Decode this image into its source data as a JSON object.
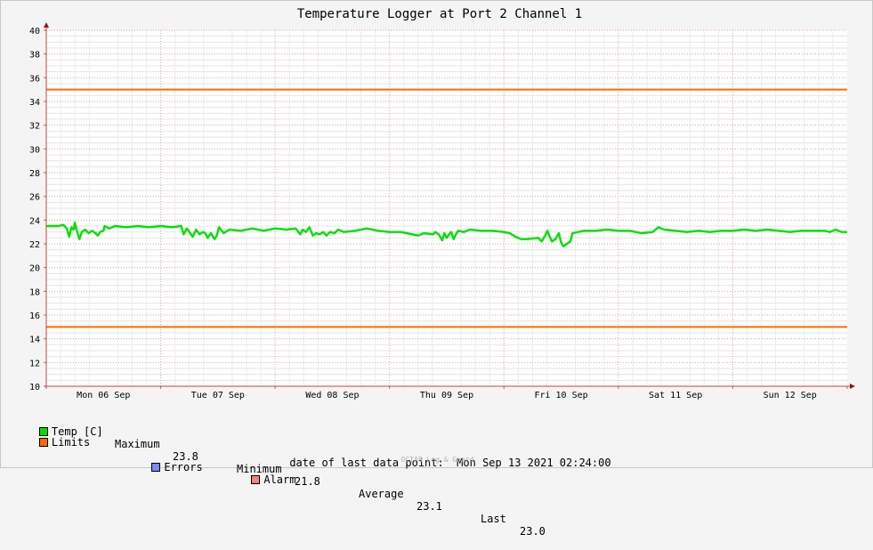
{
  "chart_data": {
    "type": "line",
    "title": "Temperature Logger at Port 2 Channel 1",
    "ylim": [
      10,
      40
    ],
    "y_ticks": [
      10,
      12,
      14,
      16,
      18,
      20,
      22,
      24,
      26,
      28,
      30,
      32,
      34,
      36,
      38,
      40
    ],
    "x_range_days": [
      0,
      7
    ],
    "x_ticks": [
      {
        "label": "Mon 06 Sep",
        "x": 0.5
      },
      {
        "label": "Tue 07 Sep",
        "x": 1.5
      },
      {
        "label": "Wed 08 Sep",
        "x": 2.5
      },
      {
        "label": "Thu 09 Sep",
        "x": 3.5
      },
      {
        "label": "Fri 10 Sep",
        "x": 4.5
      },
      {
        "label": "Sat 11 Sep",
        "x": 5.5
      },
      {
        "label": "Sun 12 Sep",
        "x": 6.5
      }
    ],
    "grid": true,
    "limits": {
      "upper": 35,
      "lower": 15,
      "color": "#ff6a00"
    },
    "series": [
      {
        "name": "Temp [C]",
        "color": "#00e000",
        "points": [
          [
            0.0,
            23.5
          ],
          [
            0.1,
            23.5
          ],
          [
            0.15,
            23.6
          ],
          [
            0.18,
            23.3
          ],
          [
            0.2,
            22.6
          ],
          [
            0.22,
            23.4
          ],
          [
            0.24,
            23.2
          ],
          [
            0.25,
            23.8
          ],
          [
            0.27,
            23.0
          ],
          [
            0.29,
            22.4
          ],
          [
            0.31,
            23.0
          ],
          [
            0.34,
            23.2
          ],
          [
            0.37,
            22.9
          ],
          [
            0.4,
            23.1
          ],
          [
            0.43,
            22.9
          ],
          [
            0.45,
            22.7
          ],
          [
            0.47,
            23.0
          ],
          [
            0.5,
            23.1
          ],
          [
            0.51,
            23.5
          ],
          [
            0.55,
            23.3
          ],
          [
            0.6,
            23.5
          ],
          [
            0.7,
            23.4
          ],
          [
            0.8,
            23.5
          ],
          [
            0.9,
            23.4
          ],
          [
            1.0,
            23.5
          ],
          [
            1.1,
            23.4
          ],
          [
            1.18,
            23.5
          ],
          [
            1.2,
            22.8
          ],
          [
            1.23,
            23.3
          ],
          [
            1.25,
            23.0
          ],
          [
            1.28,
            22.6
          ],
          [
            1.31,
            23.2
          ],
          [
            1.34,
            22.8
          ],
          [
            1.37,
            23.0
          ],
          [
            1.39,
            22.9
          ],
          [
            1.41,
            22.5
          ],
          [
            1.44,
            22.9
          ],
          [
            1.47,
            22.4
          ],
          [
            1.49,
            22.7
          ],
          [
            1.51,
            23.4
          ],
          [
            1.55,
            22.9
          ],
          [
            1.6,
            23.2
          ],
          [
            1.7,
            23.1
          ],
          [
            1.8,
            23.3
          ],
          [
            1.9,
            23.1
          ],
          [
            2.0,
            23.3
          ],
          [
            2.1,
            23.2
          ],
          [
            2.18,
            23.3
          ],
          [
            2.22,
            22.8
          ],
          [
            2.24,
            23.2
          ],
          [
            2.27,
            23.0
          ],
          [
            2.3,
            23.4
          ],
          [
            2.33,
            22.7
          ],
          [
            2.36,
            22.9
          ],
          [
            2.39,
            22.8
          ],
          [
            2.42,
            23.0
          ],
          [
            2.45,
            22.7
          ],
          [
            2.48,
            23.0
          ],
          [
            2.52,
            22.9
          ],
          [
            2.55,
            23.2
          ],
          [
            2.6,
            23.0
          ],
          [
            2.7,
            23.1
          ],
          [
            2.8,
            23.3
          ],
          [
            2.9,
            23.1
          ],
          [
            3.0,
            23.0
          ],
          [
            3.1,
            23.0
          ],
          [
            3.2,
            22.8
          ],
          [
            3.25,
            22.7
          ],
          [
            3.3,
            22.9
          ],
          [
            3.38,
            22.8
          ],
          [
            3.4,
            23.0
          ],
          [
            3.43,
            22.8
          ],
          [
            3.46,
            22.3
          ],
          [
            3.48,
            22.9
          ],
          [
            3.5,
            22.5
          ],
          [
            3.52,
            22.8
          ],
          [
            3.54,
            23.0
          ],
          [
            3.56,
            22.4
          ],
          [
            3.58,
            22.8
          ],
          [
            3.6,
            23.1
          ],
          [
            3.65,
            23.0
          ],
          [
            3.7,
            23.2
          ],
          [
            3.8,
            23.1
          ],
          [
            3.9,
            23.1
          ],
          [
            4.0,
            23.0
          ],
          [
            4.05,
            22.9
          ],
          [
            4.1,
            22.6
          ],
          [
            4.15,
            22.4
          ],
          [
            4.2,
            22.4
          ],
          [
            4.3,
            22.5
          ],
          [
            4.33,
            22.2
          ],
          [
            4.36,
            22.7
          ],
          [
            4.38,
            23.1
          ],
          [
            4.4,
            22.6
          ],
          [
            4.42,
            22.2
          ],
          [
            4.45,
            22.4
          ],
          [
            4.48,
            22.9
          ],
          [
            4.5,
            22.1
          ],
          [
            4.52,
            21.8
          ],
          [
            4.55,
            22.0
          ],
          [
            4.58,
            22.2
          ],
          [
            4.6,
            22.9
          ],
          [
            4.65,
            23.0
          ],
          [
            4.7,
            23.1
          ],
          [
            4.8,
            23.1
          ],
          [
            4.9,
            23.2
          ],
          [
            5.0,
            23.1
          ],
          [
            5.1,
            23.1
          ],
          [
            5.2,
            22.9
          ],
          [
            5.3,
            23.0
          ],
          [
            5.35,
            23.4
          ],
          [
            5.4,
            23.2
          ],
          [
            5.5,
            23.1
          ],
          [
            5.6,
            23.0
          ],
          [
            5.7,
            23.1
          ],
          [
            5.8,
            23.0
          ],
          [
            5.9,
            23.1
          ],
          [
            6.0,
            23.1
          ],
          [
            6.1,
            23.2
          ],
          [
            6.2,
            23.1
          ],
          [
            6.3,
            23.2
          ],
          [
            6.4,
            23.1
          ],
          [
            6.5,
            23.0
          ],
          [
            6.6,
            23.1
          ],
          [
            6.7,
            23.1
          ],
          [
            6.8,
            23.1
          ],
          [
            6.85,
            23.0
          ],
          [
            6.9,
            23.2
          ],
          [
            6.95,
            23.0
          ],
          [
            7.0,
            23.0
          ]
        ]
      }
    ]
  },
  "legend": {
    "temp": {
      "label": "Temp [C]",
      "color": "#00e000"
    },
    "stats": {
      "max_label": "Maximum",
      "max_value": "23.8",
      "min_label": "Minimum",
      "min_value": "21.8",
      "avg_label": "Average",
      "avg_value": "23.1",
      "last_label": "Last",
      "last_value": "23.0"
    },
    "limits": {
      "label": "Limits",
      "color": "#ff6a00"
    },
    "errors": {
      "label": "Errors",
      "color": "#7b88ff"
    },
    "alarm": {
      "label": "Alarm",
      "color": "#ff7f7f"
    }
  },
  "footer": {
    "last_point_label": "date of last data point:",
    "last_point_value": "Mon Sep 13 2021 02:24:00",
    "watermark": "OCTA8 Log & Guard"
  }
}
